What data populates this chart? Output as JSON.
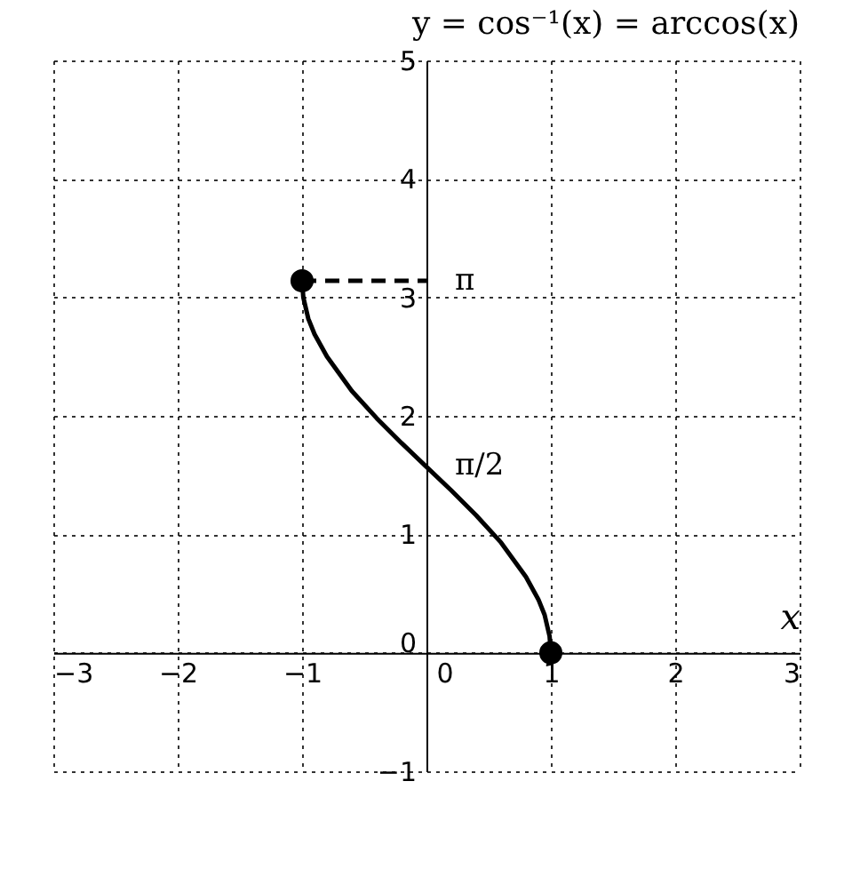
{
  "chart_data": {
    "type": "line",
    "title": "y = cos⁻¹(x) = arccos(x)",
    "xlabel": "x",
    "xlim": [
      -3,
      3
    ],
    "ylim": [
      -1,
      5
    ],
    "xticks": [
      -3,
      -2,
      -1,
      0,
      1,
      2,
      3
    ],
    "yticks": [
      -1,
      0,
      1,
      2,
      3,
      4,
      5
    ],
    "grid": true,
    "series": [
      {
        "type": "line",
        "color": "#000000",
        "marker": "none",
        "line_style": "solid",
        "x": [
          -1,
          -0.99,
          -0.95,
          -0.9,
          -0.8,
          -0.6,
          -0.4,
          -0.2,
          0,
          0.2,
          0.4,
          0.6,
          0.8,
          0.9,
          0.95,
          0.99,
          1
        ],
        "values": [
          3.14,
          3.0,
          2.82,
          2.69,
          2.5,
          2.21,
          1.98,
          1.77,
          1.57,
          1.37,
          1.16,
          0.93,
          0.64,
          0.45,
          0.32,
          0.14,
          0
        ]
      },
      {
        "type": "line",
        "color": "#000000",
        "marker": "none",
        "line_style": "dashed",
        "x": [
          -1,
          0
        ],
        "values": [
          3.14,
          3.14
        ]
      },
      {
        "type": "scatter",
        "color": "#000000",
        "marker": "circle",
        "x": [
          -1,
          1
        ],
        "values": [
          3.14,
          0
        ]
      }
    ],
    "annotations": [
      "π",
      "π/2"
    ]
  }
}
